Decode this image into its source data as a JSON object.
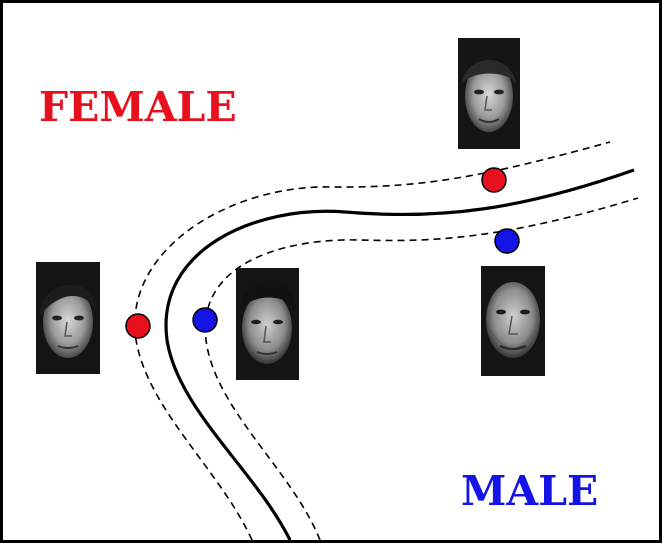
{
  "labels": {
    "female": "FEMALE",
    "male": "MALE"
  },
  "colors": {
    "female": "#e8101c",
    "male": "#1414e6",
    "boundary": "#000000",
    "margin": "#000000"
  },
  "elements": {
    "decision_boundary": "solid-curve",
    "margin_lines": "dashed-curves",
    "support_vectors": [
      {
        "class": "female",
        "color": "red"
      },
      {
        "class": "female",
        "color": "red"
      },
      {
        "class": "male",
        "color": "blue"
      },
      {
        "class": "male",
        "color": "blue"
      }
    ],
    "face_images": [
      {
        "class": "female",
        "icon": "face-photo"
      },
      {
        "class": "female",
        "icon": "face-photo"
      },
      {
        "class": "male",
        "icon": "face-photo"
      },
      {
        "class": "male",
        "icon": "face-photo"
      }
    ]
  }
}
